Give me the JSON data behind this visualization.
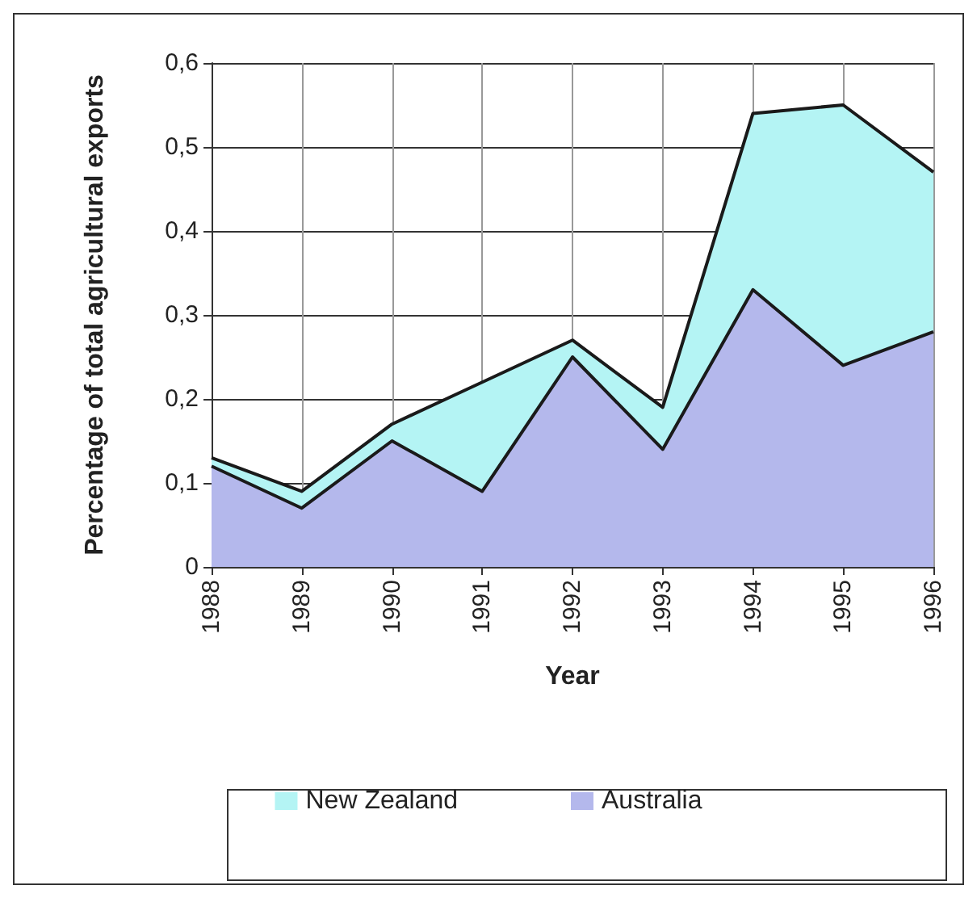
{
  "chart_data": {
    "type": "area",
    "stacked": true,
    "xlabel": "Year",
    "ylabel": "Percentage of total agricultural exports",
    "categories": [
      "1988",
      "1989",
      "1990",
      "1991",
      "1992",
      "1993",
      "1994",
      "1995",
      "1996"
    ],
    "series": [
      {
        "name": "Australia",
        "color": "#b4b8ec",
        "values": [
          0.12,
          0.07,
          0.15,
          0.09,
          0.25,
          0.14,
          0.33,
          0.24,
          0.28
        ]
      },
      {
        "name": "New Zealand",
        "color": "#b4f4f4",
        "values": [
          0.01,
          0.02,
          0.02,
          0.13,
          0.02,
          0.05,
          0.21,
          0.31,
          0.19
        ]
      }
    ],
    "ylim": [
      0,
      0.6
    ],
    "yticks": [
      0,
      {
        "value": 0.1,
        "label": "0,1"
      },
      {
        "value": 0.2,
        "label": "0,2"
      },
      {
        "value": 0.3,
        "label": "0,3"
      },
      {
        "value": 0.4,
        "label": "0,4"
      },
      {
        "value": 0.5,
        "label": "0,5"
      },
      {
        "value": 0.6,
        "label": "0,6"
      }
    ],
    "grid": true,
    "legend": "bottom"
  }
}
